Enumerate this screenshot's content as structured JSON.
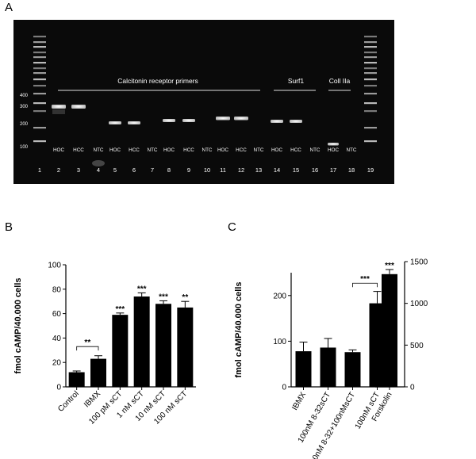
{
  "panels": {
    "a": "A",
    "b": "B",
    "c": "C"
  },
  "gel": {
    "ladder_marks": [
      "400",
      "300",
      "200",
      "100"
    ],
    "group_labels": [
      "Calcitonin receptor primers",
      "Surf1",
      "Coll IIa"
    ],
    "lane_labels": [
      "",
      "HOC",
      "HCC",
      "NTC",
      "HOC",
      "HCC",
      "NTC",
      "HOC",
      "HCC",
      "NTC",
      "HOC",
      "HCC",
      "NTC",
      "HOC",
      "HCC",
      "NTC",
      "HOC",
      "NTC",
      ""
    ],
    "lane_numbers": [
      "1",
      "2",
      "3",
      "4",
      "5",
      "6",
      "7",
      "8",
      "9",
      "10",
      "11",
      "12",
      "13",
      "14",
      "15",
      "16",
      "17",
      "18",
      "19"
    ]
  },
  "chart_data": [
    {
      "type": "bar",
      "ylabel": "fmol cAMP/40.000 cells",
      "ylim": [
        0,
        100
      ],
      "yticks": [
        "0",
        "20",
        "40",
        "60",
        "80",
        "100"
      ],
      "categories": [
        "Control",
        "IBMX",
        "100 pM sCT",
        "1 nM sCT",
        "10 nM sCT",
        "100 nM sCT"
      ],
      "values": [
        12,
        23,
        59,
        74,
        68,
        65
      ],
      "errors": [
        1,
        2.5,
        1.5,
        3,
        2.5,
        5
      ],
      "significance": [
        "",
        "",
        "***",
        "***",
        "***",
        "**"
      ],
      "bracket": {
        "from": "Control",
        "to": "IBMX",
        "label": "**"
      }
    },
    {
      "type": "bar",
      "ylabel": "fmol cAMP/40.000 cells",
      "ylim": [
        0,
        250
      ],
      "yticks": [
        "0",
        "100",
        "200"
      ],
      "categories": [
        "IBMX",
        "100nM 8-32sCT",
        "100nM 8-32+100nMsCT",
        "100nM sCT"
      ],
      "values": [
        78,
        86,
        76,
        183
      ],
      "errors": [
        20,
        20,
        5,
        26
      ],
      "bracket": {
        "from": "100nM 8-32+100nMsCT",
        "to": "100nM sCT",
        "label": "***"
      },
      "right_axis": {
        "ylim": [
          0,
          1500
        ],
        "yticks": [
          "0",
          "500",
          "1000",
          "1500"
        ],
        "category": "Forskolin",
        "value": 1350,
        "error": 55,
        "significance": "***"
      }
    }
  ]
}
